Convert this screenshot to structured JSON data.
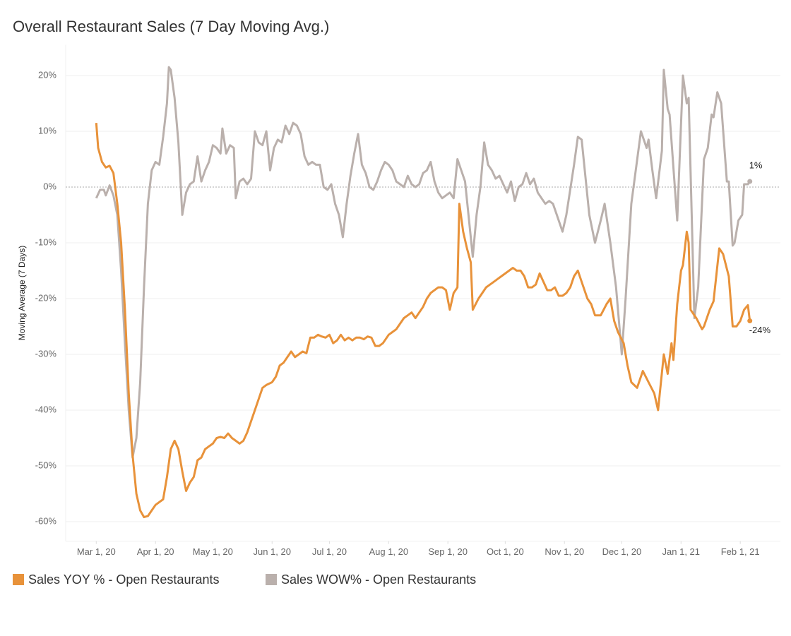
{
  "chart_data": {
    "type": "line",
    "title": "Overall Restaurant Sales (7 Day Moving Avg.)",
    "y_label": "Moving Average (7 Days)",
    "xlim": [
      "2020-02-14",
      "2021-02-22"
    ],
    "xticks": [
      {
        "value": "2020-03-01",
        "label": "Mar 1, 20"
      },
      {
        "value": "2020-04-01",
        "label": "Apr 1, 20"
      },
      {
        "value": "2020-05-01",
        "label": "May 1, 20"
      },
      {
        "value": "2020-06-01",
        "label": "Jun 1, 20"
      },
      {
        "value": "2020-07-01",
        "label": "Jul 1, 20"
      },
      {
        "value": "2020-08-01",
        "label": "Aug 1, 20"
      },
      {
        "value": "2020-09-01",
        "label": "Sep 1, 20"
      },
      {
        "value": "2020-10-01",
        "label": "Oct 1, 20"
      },
      {
        "value": "2020-11-01",
        "label": "Nov 1, 20"
      },
      {
        "value": "2020-12-01",
        "label": "Dec 1, 20"
      },
      {
        "value": "2021-01-01",
        "label": "Jan 1, 21"
      },
      {
        "value": "2021-02-01",
        "label": "Feb 1, 21"
      }
    ],
    "ylim": [
      -63.5,
      25.5
    ],
    "yticks": [
      {
        "value": -60,
        "label": "-60%"
      },
      {
        "value": -50,
        "label": "-50%"
      },
      {
        "value": -40,
        "label": "-40%"
      },
      {
        "value": -30,
        "label": "-30%"
      },
      {
        "value": -20,
        "label": "-20%"
      },
      {
        "value": -10,
        "label": "-10%"
      },
      {
        "value": 0,
        "label": "0%"
      },
      {
        "value": 10,
        "label": "10%"
      },
      {
        "value": 20,
        "label": "20%"
      }
    ],
    "grid": true,
    "legend": "bottom",
    "series": [
      {
        "name": "Sales YOY % - Open Restaurants",
        "color": "#e8923a",
        "end_label": "-24%",
        "x": [
          "2020-03-01",
          "2020-03-02",
          "2020-03-04",
          "2020-03-06",
          "2020-03-08",
          "2020-03-10",
          "2020-03-12",
          "2020-03-14",
          "2020-03-16",
          "2020-03-18",
          "2020-03-20",
          "2020-03-22",
          "2020-03-24",
          "2020-03-26",
          "2020-03-28",
          "2020-03-30",
          "2020-04-01",
          "2020-04-03",
          "2020-04-05",
          "2020-04-07",
          "2020-04-09",
          "2020-04-11",
          "2020-04-13",
          "2020-04-15",
          "2020-04-17",
          "2020-04-19",
          "2020-04-21",
          "2020-04-23",
          "2020-04-25",
          "2020-04-27",
          "2020-04-29",
          "2020-05-01",
          "2020-05-03",
          "2020-05-05",
          "2020-05-07",
          "2020-05-09",
          "2020-05-11",
          "2020-05-13",
          "2020-05-15",
          "2020-05-17",
          "2020-05-19",
          "2020-05-21",
          "2020-05-23",
          "2020-05-25",
          "2020-05-27",
          "2020-05-29",
          "2020-06-01",
          "2020-06-03",
          "2020-06-05",
          "2020-06-07",
          "2020-06-09",
          "2020-06-11",
          "2020-06-13",
          "2020-06-15",
          "2020-06-17",
          "2020-06-19",
          "2020-06-21",
          "2020-06-23",
          "2020-06-25",
          "2020-06-27",
          "2020-06-29",
          "2020-07-01",
          "2020-07-03",
          "2020-07-05",
          "2020-07-07",
          "2020-07-09",
          "2020-07-11",
          "2020-07-13",
          "2020-07-15",
          "2020-07-17",
          "2020-07-19",
          "2020-07-21",
          "2020-07-23",
          "2020-07-25",
          "2020-07-27",
          "2020-07-29",
          "2020-08-01",
          "2020-08-03",
          "2020-08-05",
          "2020-08-07",
          "2020-08-09",
          "2020-08-11",
          "2020-08-13",
          "2020-08-15",
          "2020-08-17",
          "2020-08-19",
          "2020-08-21",
          "2020-08-23",
          "2020-08-25",
          "2020-08-27",
          "2020-08-29",
          "2020-08-31",
          "2020-09-02",
          "2020-09-04",
          "2020-09-06",
          "2020-09-07",
          "2020-09-09",
          "2020-09-11",
          "2020-09-13",
          "2020-09-14",
          "2020-09-17",
          "2020-09-19",
          "2020-09-21",
          "2020-09-23",
          "2020-09-25",
          "2020-09-27",
          "2020-09-29",
          "2020-10-01",
          "2020-10-03",
          "2020-10-05",
          "2020-10-07",
          "2020-10-09",
          "2020-10-11",
          "2020-10-13",
          "2020-10-15",
          "2020-10-17",
          "2020-10-19",
          "2020-10-21",
          "2020-10-23",
          "2020-10-25",
          "2020-10-27",
          "2020-10-29",
          "2020-10-31",
          "2020-11-02",
          "2020-11-04",
          "2020-11-06",
          "2020-11-08",
          "2020-11-10",
          "2020-11-13",
          "2020-11-15",
          "2020-11-17",
          "2020-11-20",
          "2020-11-23",
          "2020-11-25",
          "2020-11-27",
          "2020-11-29",
          "2020-12-02",
          "2020-12-04",
          "2020-12-06",
          "2020-12-09",
          "2020-12-12",
          "2020-12-15",
          "2020-12-18",
          "2020-12-20",
          "2020-12-23",
          "2020-12-25",
          "2020-12-27",
          "2020-12-28",
          "2020-12-30",
          "2021-01-01",
          "2021-01-02",
          "2021-01-04",
          "2021-01-05",
          "2021-01-06",
          "2021-01-09",
          "2021-01-12",
          "2021-01-13",
          "2021-01-16",
          "2021-01-18",
          "2021-01-21",
          "2021-01-23",
          "2021-01-26",
          "2021-01-28",
          "2021-01-30",
          "2021-02-01",
          "2021-02-03",
          "2021-02-05",
          "2021-02-06"
        ],
        "values": [
          11.5,
          7,
          4.5,
          3.5,
          3.8,
          2.5,
          -3,
          -10,
          -22,
          -37,
          -48,
          -55,
          -58,
          -59.2,
          -59,
          -58,
          -57,
          -56.5,
          -56,
          -52,
          -47,
          -45.5,
          -47,
          -51,
          -54.5,
          -53,
          -52,
          -49,
          -48.5,
          -47,
          -46.5,
          -46,
          -45,
          -44.8,
          -45,
          -44.2,
          -45,
          -45.5,
          -46,
          -45.5,
          -44,
          -42,
          -40,
          -38,
          -36,
          -35.5,
          -35,
          -34,
          -32,
          -31.5,
          -30.5,
          -29.5,
          -30.5,
          -30,
          -29.5,
          -29.8,
          -27,
          -27,
          -26.5,
          -26.8,
          -27,
          -26.5,
          -28,
          -27.5,
          -26.5,
          -27.5,
          -27,
          -27.5,
          -27,
          -27,
          -27.3,
          -26.8,
          -27,
          -28.5,
          -28.5,
          -28,
          -26.5,
          -26,
          -25.5,
          -24.5,
          -23.5,
          -23,
          -22.5,
          -23.5,
          -22.5,
          -21.5,
          -20,
          -19,
          -18.5,
          -18,
          -18,
          -18.5,
          -22,
          -19,
          -18,
          -3,
          -8,
          -11,
          -13.5,
          -22,
          -20,
          -19,
          -18,
          -17.5,
          -17,
          -16.5,
          -16,
          -15.5,
          -15,
          -14.5,
          -15,
          -15,
          -16,
          -18,
          -18,
          -17.5,
          -15.5,
          -17,
          -18.5,
          -18.5,
          -18,
          -19.5,
          -19.5,
          -19,
          -18,
          -16,
          -15,
          -17,
          -20,
          -21,
          -23,
          -23,
          -21,
          -20,
          -24,
          -26,
          -28,
          -32,
          -35,
          -36,
          -33,
          -35,
          -37,
          -40,
          -30,
          -33.5,
          -28,
          -31,
          -21,
          -15,
          -14,
          -8,
          -10,
          -22,
          -23.5,
          -25.5,
          -25,
          -22,
          -20.5,
          -11,
          -12,
          -16,
          -25,
          -25,
          -24,
          -22,
          -21.2,
          -24
        ]
      },
      {
        "name": "Sales WOW% - Open Restaurants",
        "color": "#bab0ac",
        "end_label": "1%",
        "x": [
          "2020-03-01",
          "2020-03-03",
          "2020-03-05",
          "2020-03-06",
          "2020-03-08",
          "2020-03-10",
          "2020-03-12",
          "2020-03-14",
          "2020-03-16",
          "2020-03-18",
          "2020-03-20",
          "2020-03-22",
          "2020-03-24",
          "2020-03-26",
          "2020-03-28",
          "2020-03-30",
          "2020-04-01",
          "2020-04-03",
          "2020-04-05",
          "2020-04-07",
          "2020-04-08",
          "2020-04-09",
          "2020-04-11",
          "2020-04-13",
          "2020-04-15",
          "2020-04-17",
          "2020-04-19",
          "2020-04-21",
          "2020-04-23",
          "2020-04-25",
          "2020-04-27",
          "2020-04-29",
          "2020-05-01",
          "2020-05-03",
          "2020-05-05",
          "2020-05-06",
          "2020-05-08",
          "2020-05-10",
          "2020-05-12",
          "2020-05-13",
          "2020-05-15",
          "2020-05-17",
          "2020-05-19",
          "2020-05-21",
          "2020-05-23",
          "2020-05-25",
          "2020-05-27",
          "2020-05-29",
          "2020-05-31",
          "2020-06-02",
          "2020-06-04",
          "2020-06-06",
          "2020-06-08",
          "2020-06-10",
          "2020-06-12",
          "2020-06-14",
          "2020-06-16",
          "2020-06-18",
          "2020-06-20",
          "2020-06-22",
          "2020-06-24",
          "2020-06-26",
          "2020-06-28",
          "2020-06-30",
          "2020-07-02",
          "2020-07-04",
          "2020-07-06",
          "2020-07-08",
          "2020-07-10",
          "2020-07-12",
          "2020-07-14",
          "2020-07-16",
          "2020-07-18",
          "2020-07-20",
          "2020-07-22",
          "2020-07-24",
          "2020-07-26",
          "2020-07-28",
          "2020-07-30",
          "2020-08-01",
          "2020-08-03",
          "2020-08-05",
          "2020-08-07",
          "2020-08-09",
          "2020-08-11",
          "2020-08-13",
          "2020-08-15",
          "2020-08-17",
          "2020-08-19",
          "2020-08-21",
          "2020-08-23",
          "2020-08-25",
          "2020-08-27",
          "2020-08-29",
          "2020-08-31",
          "2020-09-02",
          "2020-09-04",
          "2020-09-06",
          "2020-09-08",
          "2020-09-10",
          "2020-09-14",
          "2020-09-16",
          "2020-09-18",
          "2020-09-20",
          "2020-09-22",
          "2020-09-24",
          "2020-09-26",
          "2020-09-28",
          "2020-09-30",
          "2020-10-02",
          "2020-10-04",
          "2020-10-06",
          "2020-10-08",
          "2020-10-10",
          "2020-10-12",
          "2020-10-14",
          "2020-10-16",
          "2020-10-18",
          "2020-10-20",
          "2020-10-22",
          "2020-10-24",
          "2020-10-26",
          "2020-10-28",
          "2020-10-31",
          "2020-11-02",
          "2020-11-06",
          "2020-11-08",
          "2020-11-10",
          "2020-11-14",
          "2020-11-17",
          "2020-11-20",
          "2020-11-22",
          "2020-11-25",
          "2020-11-28",
          "2020-12-01",
          "2020-12-03",
          "2020-12-06",
          "2020-12-11",
          "2020-12-14",
          "2020-12-15",
          "2020-12-17",
          "2020-12-19",
          "2020-12-22",
          "2020-12-23",
          "2020-12-25",
          "2020-12-26",
          "2020-12-30",
          "2021-01-02",
          "2021-01-04",
          "2021-01-05",
          "2021-01-08",
          "2021-01-10",
          "2021-01-13",
          "2021-01-15",
          "2021-01-17",
          "2021-01-18",
          "2021-01-20",
          "2021-01-22",
          "2021-01-25",
          "2021-01-26",
          "2021-01-28",
          "2021-01-29",
          "2021-01-31",
          "2021-02-02",
          "2021-02-03",
          "2021-02-05",
          "2021-02-06"
        ],
        "values": [
          -2,
          -0.5,
          -0.5,
          -1.5,
          0.3,
          -1.5,
          -5,
          -15,
          -28,
          -40,
          -48.5,
          -45,
          -35,
          -18,
          -3,
          3,
          4.5,
          4,
          9,
          15,
          21.5,
          21,
          16,
          8,
          -5,
          -1,
          0.5,
          1,
          5.5,
          1,
          3,
          4.5,
          7.5,
          7,
          6,
          10.5,
          6,
          7.5,
          7,
          -2,
          1,
          1.5,
          0.5,
          1.5,
          10,
          8,
          7.5,
          10,
          3,
          7,
          8.5,
          8,
          11,
          9.5,
          11.5,
          11,
          9.5,
          5.5,
          4,
          4.5,
          4,
          4,
          0,
          -0.5,
          0.5,
          -3,
          -5,
          -9,
          -3,
          2,
          6,
          9.5,
          4,
          2.5,
          0,
          -0.5,
          1,
          3,
          4.5,
          4,
          3,
          1,
          0.5,
          0,
          2,
          0.5,
          0,
          0.5,
          2.5,
          3,
          4.5,
          1,
          -1,
          -2,
          -1.5,
          -1,
          -2,
          5,
          3,
          1,
          -12.5,
          -5,
          0,
          8,
          4,
          3,
          1.5,
          2,
          0.5,
          -1,
          1,
          -2.5,
          0,
          0.5,
          2.5,
          0.5,
          1.5,
          -1,
          -2,
          -3,
          -2.5,
          -3,
          -5,
          -8,
          -5,
          4,
          9,
          8.5,
          -5,
          -10,
          -6,
          -3,
          -10,
          -18,
          -30,
          -20,
          -3,
          10,
          7,
          8.5,
          3,
          -2,
          6.5,
          21,
          14,
          13,
          -6,
          20,
          15,
          16,
          -23.5,
          -18,
          5,
          7,
          13,
          12.5,
          17,
          15,
          1,
          1,
          -10.5,
          -10,
          -6,
          -5,
          0.5,
          0.5,
          1
        ]
      }
    ]
  }
}
